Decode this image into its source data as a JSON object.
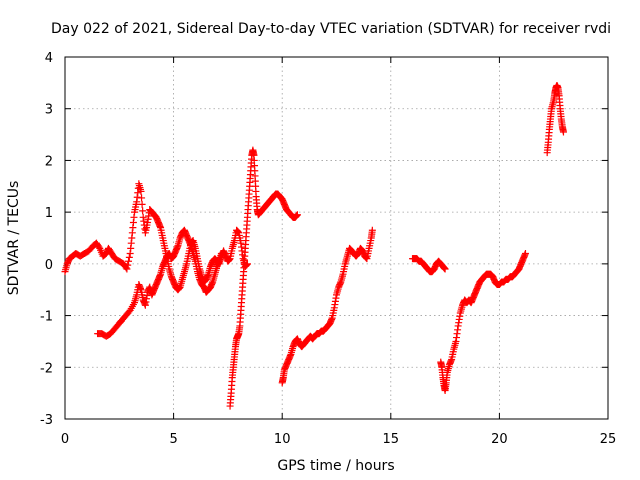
{
  "chart_data": {
    "type": "scatter",
    "title": "Day 022 of 2021, Sidereal Day-to-day VTEC variation (SDTVAR) for receiver rvdi",
    "xlabel": "GPS time / hours",
    "ylabel": "SDTVAR / TECUs",
    "xlim": [
      0,
      25
    ],
    "ylim": [
      -3,
      4
    ],
    "xticks": [
      "0",
      "5",
      "10",
      "15",
      "20",
      "25"
    ],
    "yticks": [
      "-3",
      "-2",
      "-1",
      "0",
      "1",
      "2",
      "3",
      "4"
    ],
    "grid": true,
    "marker": "plus",
    "color": "#ff0000",
    "series": [
      {
        "values": [
          [
            0.0,
            -0.15
          ],
          [
            0.1,
            0.0
          ],
          [
            0.2,
            0.1
          ],
          [
            0.35,
            0.15
          ],
          [
            0.5,
            0.2
          ],
          [
            0.7,
            0.15
          ],
          [
            0.9,
            0.2
          ],
          [
            1.1,
            0.25
          ],
          [
            1.3,
            0.35
          ],
          [
            1.45,
            0.4
          ],
          [
            1.6,
            0.3
          ],
          [
            1.75,
            0.15
          ],
          [
            1.9,
            0.2
          ],
          [
            2.0,
            0.3
          ],
          [
            2.15,
            0.2
          ],
          [
            2.3,
            0.1
          ],
          [
            2.5,
            0.05
          ],
          [
            2.7,
            0.0
          ],
          [
            2.85,
            -0.1
          ],
          [
            3.0,
            0.2
          ],
          [
            3.1,
            0.6
          ],
          [
            3.2,
            1.0
          ],
          [
            3.3,
            1.2
          ],
          [
            3.4,
            1.55
          ],
          [
            3.5,
            1.4
          ],
          [
            3.6,
            0.9
          ],
          [
            3.7,
            0.6
          ],
          [
            3.8,
            0.8
          ],
          [
            3.9,
            1.05
          ],
          [
            4.0,
            1.0
          ],
          [
            4.1,
            0.95
          ],
          [
            4.2,
            0.9
          ],
          [
            4.3,
            0.8
          ],
          [
            4.4,
            0.7
          ],
          [
            4.5,
            0.5
          ],
          [
            4.6,
            0.3
          ],
          [
            4.7,
            0.1
          ],
          [
            4.8,
            -0.1
          ],
          [
            4.9,
            -0.25
          ],
          [
            5.0,
            -0.35
          ],
          [
            5.1,
            -0.45
          ],
          [
            5.2,
            -0.5
          ],
          [
            5.3,
            -0.45
          ],
          [
            5.4,
            -0.3
          ],
          [
            5.5,
            -0.15
          ],
          [
            5.6,
            0.0
          ],
          [
            5.7,
            0.2
          ],
          [
            5.8,
            0.4
          ],
          [
            5.9,
            0.45
          ],
          [
            6.0,
            0.3
          ],
          [
            6.1,
            0.1
          ],
          [
            6.2,
            -0.1
          ],
          [
            6.3,
            -0.25
          ],
          [
            6.4,
            -0.35
          ],
          [
            6.5,
            -0.3
          ],
          [
            6.6,
            -0.2
          ],
          [
            6.7,
            -0.05
          ],
          [
            6.8,
            0.05
          ],
          [
            6.9,
            0.1
          ],
          [
            7.0,
            0.05
          ],
          [
            7.1,
            0.0
          ],
          [
            7.2,
            0.15
          ],
          [
            7.3,
            0.25
          ],
          [
            7.4,
            0.15
          ],
          [
            7.5,
            0.05
          ],
          [
            7.6,
            0.1
          ],
          [
            7.7,
            0.3
          ],
          [
            7.8,
            0.45
          ],
          [
            7.9,
            0.65
          ],
          [
            8.0,
            0.6
          ],
          [
            8.1,
            0.4
          ],
          [
            8.2,
            0.1
          ],
          [
            8.3,
            -0.05
          ],
          [
            8.4,
            0.0
          ]
        ]
      },
      {
        "values": [
          [
            1.5,
            -1.35
          ],
          [
            1.7,
            -1.35
          ],
          [
            1.9,
            -1.4
          ],
          [
            2.1,
            -1.35
          ],
          [
            2.3,
            -1.25
          ],
          [
            2.5,
            -1.15
          ],
          [
            2.6,
            -1.1
          ],
          [
            2.8,
            -1.0
          ],
          [
            3.0,
            -0.9
          ],
          [
            3.2,
            -0.75
          ],
          [
            3.3,
            -0.6
          ],
          [
            3.4,
            -0.4
          ],
          [
            3.5,
            -0.5
          ],
          [
            3.6,
            -0.7
          ],
          [
            3.7,
            -0.8
          ],
          [
            3.8,
            -0.55
          ],
          [
            3.9,
            -0.45
          ],
          [
            4.0,
            -0.6
          ],
          [
            4.1,
            -0.5
          ],
          [
            4.2,
            -0.4
          ],
          [
            4.3,
            -0.3
          ],
          [
            4.4,
            -0.2
          ],
          [
            4.5,
            -0.05
          ],
          [
            4.6,
            0.05
          ],
          [
            4.7,
            0.15
          ],
          [
            4.8,
            0.2
          ],
          [
            4.9,
            0.1
          ],
          [
            5.0,
            0.15
          ],
          [
            5.1,
            0.25
          ],
          [
            5.2,
            0.35
          ],
          [
            5.3,
            0.5
          ],
          [
            5.4,
            0.6
          ],
          [
            5.5,
            0.65
          ],
          [
            5.6,
            0.55
          ],
          [
            5.7,
            0.45
          ],
          [
            5.8,
            0.35
          ],
          [
            5.9,
            0.2
          ],
          [
            6.0,
            0.05
          ],
          [
            6.1,
            -0.15
          ],
          [
            6.2,
            -0.3
          ],
          [
            6.3,
            -0.4
          ],
          [
            6.4,
            -0.45
          ],
          [
            6.5,
            -0.55
          ],
          [
            6.6,
            -0.5
          ],
          [
            6.7,
            -0.45
          ],
          [
            6.8,
            -0.35
          ],
          [
            6.9,
            -0.2
          ],
          [
            7.0,
            -0.05
          ],
          [
            7.1,
            0.05
          ],
          [
            7.2,
            0.2
          ]
        ]
      },
      {
        "values": [
          [
            7.6,
            -2.75
          ],
          [
            7.65,
            -2.5
          ],
          [
            7.7,
            -2.2
          ],
          [
            7.75,
            -2.0
          ],
          [
            7.8,
            -1.8
          ],
          [
            7.85,
            -1.6
          ],
          [
            7.9,
            -1.45
          ],
          [
            7.95,
            -1.4
          ],
          [
            8.0,
            -1.35
          ],
          [
            8.05,
            -1.2
          ],
          [
            8.1,
            -0.9
          ],
          [
            8.15,
            -0.6
          ],
          [
            8.2,
            -0.3
          ],
          [
            8.25,
            0.0
          ],
          [
            8.3,
            0.3
          ],
          [
            8.35,
            0.6
          ],
          [
            8.4,
            0.9
          ],
          [
            8.45,
            1.2
          ],
          [
            8.5,
            1.5
          ],
          [
            8.55,
            1.8
          ],
          [
            8.6,
            2.1
          ],
          [
            8.65,
            2.2
          ],
          [
            8.7,
            2.1
          ],
          [
            8.75,
            1.7
          ],
          [
            8.8,
            1.3
          ],
          [
            8.85,
            1.05
          ],
          [
            8.9,
            0.95
          ],
          [
            9.0,
            1.0
          ],
          [
            9.1,
            1.05
          ],
          [
            9.2,
            1.1
          ],
          [
            9.3,
            1.15
          ],
          [
            9.4,
            1.2
          ],
          [
            9.5,
            1.25
          ],
          [
            9.6,
            1.3
          ],
          [
            9.7,
            1.35
          ],
          [
            9.8,
            1.35
          ],
          [
            9.9,
            1.3
          ],
          [
            10.0,
            1.25
          ],
          [
            10.1,
            1.15
          ],
          [
            10.2,
            1.05
          ],
          [
            10.3,
            1.0
          ],
          [
            10.4,
            0.95
          ],
          [
            10.5,
            0.9
          ],
          [
            10.6,
            0.9
          ],
          [
            10.7,
            0.95
          ]
        ]
      },
      {
        "values": [
          [
            10.0,
            -2.3
          ],
          [
            10.05,
            -2.2
          ],
          [
            10.1,
            -2.05
          ],
          [
            10.2,
            -1.95
          ],
          [
            10.3,
            -1.85
          ],
          [
            10.4,
            -1.75
          ],
          [
            10.5,
            -1.6
          ],
          [
            10.6,
            -1.5
          ],
          [
            10.7,
            -1.45
          ],
          [
            10.8,
            -1.55
          ],
          [
            10.9,
            -1.6
          ],
          [
            11.0,
            -1.55
          ],
          [
            11.1,
            -1.5
          ],
          [
            11.2,
            -1.45
          ],
          [
            11.3,
            -1.4
          ],
          [
            11.4,
            -1.45
          ],
          [
            11.5,
            -1.4
          ],
          [
            11.6,
            -1.35
          ],
          [
            11.7,
            -1.35
          ],
          [
            11.8,
            -1.3
          ],
          [
            11.9,
            -1.3
          ],
          [
            12.0,
            -1.25
          ],
          [
            12.1,
            -1.2
          ],
          [
            12.2,
            -1.15
          ],
          [
            12.3,
            -1.05
          ],
          [
            12.4,
            -0.85
          ],
          [
            12.5,
            -0.6
          ],
          [
            12.6,
            -0.45
          ],
          [
            12.7,
            -0.35
          ],
          [
            12.8,
            -0.2
          ],
          [
            12.9,
            0.0
          ],
          [
            13.0,
            0.15
          ],
          [
            13.1,
            0.3
          ],
          [
            13.2,
            0.25
          ],
          [
            13.3,
            0.2
          ],
          [
            13.4,
            0.15
          ],
          [
            13.5,
            0.2
          ],
          [
            13.6,
            0.3
          ],
          [
            13.7,
            0.25
          ],
          [
            13.8,
            0.15
          ],
          [
            13.9,
            0.1
          ],
          [
            14.0,
            0.3
          ],
          [
            14.1,
            0.5
          ],
          [
            14.15,
            0.65
          ]
        ]
      },
      {
        "values": [
          [
            16.0,
            0.1
          ],
          [
            16.1,
            0.1
          ],
          [
            16.2,
            0.1
          ],
          [
            16.3,
            0.05
          ],
          [
            16.4,
            0.05
          ],
          [
            16.5,
            0.0
          ],
          [
            16.6,
            -0.05
          ],
          [
            16.7,
            -0.1
          ],
          [
            16.8,
            -0.15
          ],
          [
            16.9,
            -0.15
          ],
          [
            17.0,
            -0.1
          ],
          [
            17.1,
            0.0
          ],
          [
            17.2,
            0.05
          ],
          [
            17.3,
            0.0
          ],
          [
            17.4,
            -0.05
          ],
          [
            17.5,
            -0.1
          ]
        ]
      },
      {
        "values": [
          [
            17.3,
            -1.9
          ],
          [
            17.35,
            -2.0
          ],
          [
            17.4,
            -2.2
          ],
          [
            17.45,
            -2.35
          ],
          [
            17.5,
            -2.45
          ],
          [
            17.55,
            -2.3
          ],
          [
            17.6,
            -2.1
          ],
          [
            17.7,
            -1.95
          ],
          [
            17.8,
            -1.85
          ],
          [
            17.9,
            -1.65
          ],
          [
            18.0,
            -1.5
          ],
          [
            18.1,
            -1.2
          ],
          [
            18.2,
            -0.95
          ],
          [
            18.3,
            -0.8
          ],
          [
            18.4,
            -0.7
          ],
          [
            18.5,
            -0.75
          ],
          [
            18.6,
            -0.7
          ],
          [
            18.7,
            -0.75
          ],
          [
            18.8,
            -0.65
          ],
          [
            18.9,
            -0.55
          ],
          [
            19.0,
            -0.45
          ],
          [
            19.1,
            -0.35
          ],
          [
            19.2,
            -0.3
          ],
          [
            19.3,
            -0.25
          ],
          [
            19.4,
            -0.2
          ],
          [
            19.5,
            -0.2
          ],
          [
            19.6,
            -0.2
          ],
          [
            19.7,
            -0.25
          ],
          [
            19.8,
            -0.35
          ],
          [
            19.9,
            -0.4
          ],
          [
            20.0,
            -0.4
          ],
          [
            20.1,
            -0.35
          ],
          [
            20.2,
            -0.35
          ],
          [
            20.3,
            -0.3
          ],
          [
            20.4,
            -0.3
          ],
          [
            20.5,
            -0.25
          ],
          [
            20.6,
            -0.25
          ],
          [
            20.7,
            -0.2
          ],
          [
            20.8,
            -0.15
          ],
          [
            20.9,
            -0.1
          ],
          [
            21.0,
            0.0
          ],
          [
            21.1,
            0.1
          ],
          [
            21.2,
            0.2
          ]
        ]
      },
      {
        "values": [
          [
            22.2,
            2.15
          ],
          [
            22.25,
            2.35
          ],
          [
            22.3,
            2.6
          ],
          [
            22.35,
            2.8
          ],
          [
            22.4,
            3.0
          ],
          [
            22.5,
            3.15
          ],
          [
            22.55,
            3.3
          ],
          [
            22.6,
            3.4
          ],
          [
            22.65,
            3.45
          ],
          [
            22.7,
            3.4
          ],
          [
            22.75,
            3.25
          ],
          [
            22.8,
            3.0
          ],
          [
            22.85,
            2.8
          ],
          [
            22.9,
            2.65
          ],
          [
            22.95,
            2.55
          ]
        ]
      }
    ]
  }
}
